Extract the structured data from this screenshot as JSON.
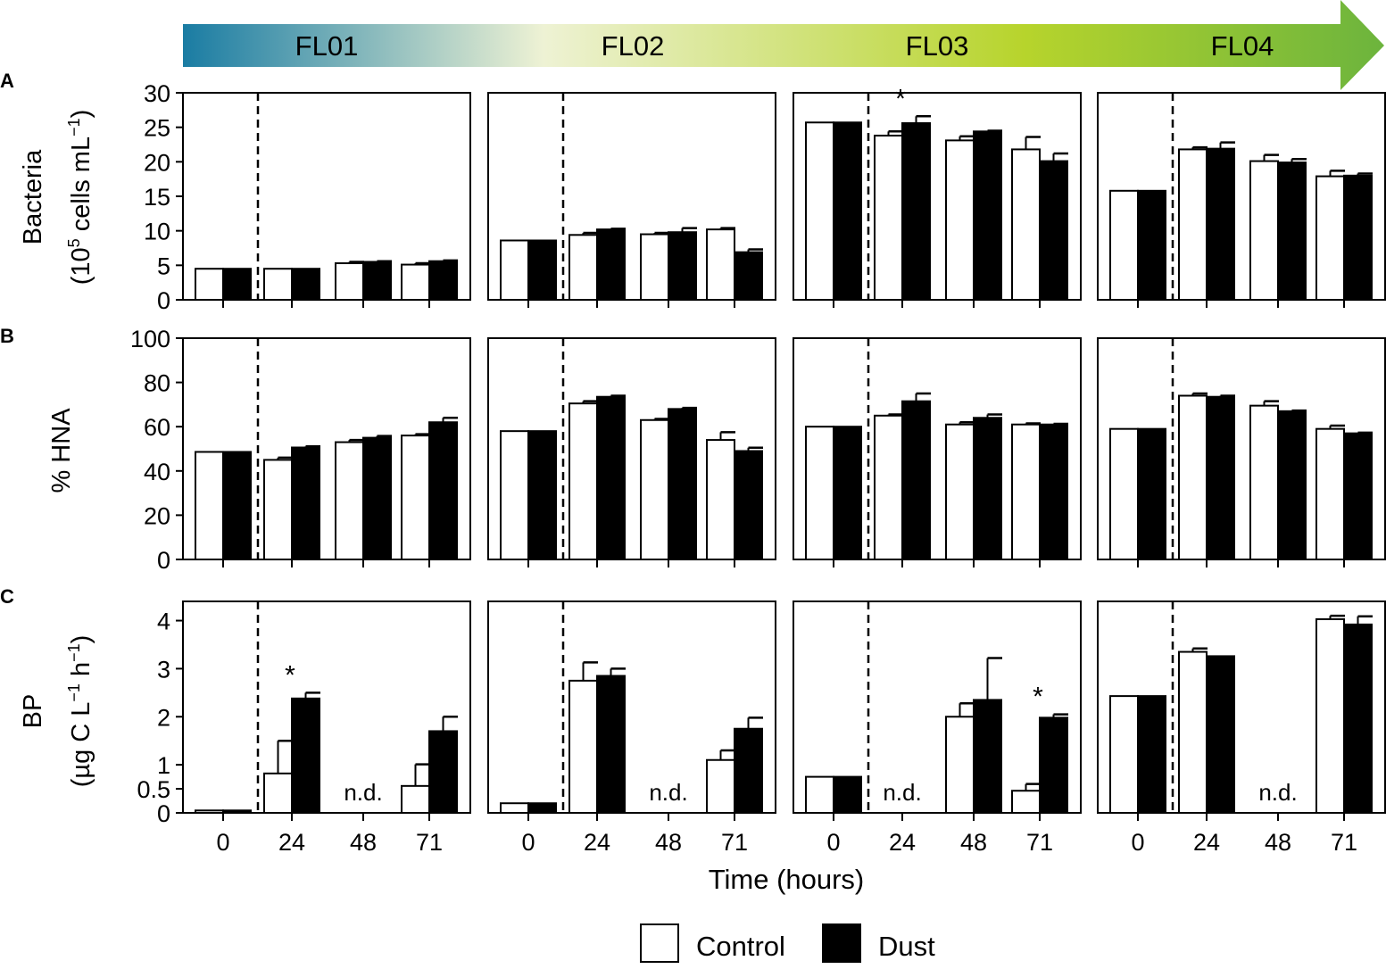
{
  "banner": {
    "labels": [
      "FL01",
      "FL02",
      "FL03",
      "FL04"
    ],
    "gradient_colors": [
      "#1a7ca3",
      "#eef2d4",
      "#b7d42c",
      "#6cb43d"
    ]
  },
  "panel_letters": [
    "A",
    "B",
    "C"
  ],
  "y_axis": {
    "A": {
      "line1": "Bacteria",
      "line2_pre": "(10",
      "line2_sup": "5",
      "line2_post": " cells mL",
      "line2_sup2": "−1",
      "line2_end": ")"
    },
    "B": {
      "line1": "% HNA"
    },
    "C": {
      "line1": "BP",
      "line2_pre": "(µg C L",
      "line2_sup": "−1",
      "line2_mid": " h",
      "line2_sup2": "−1",
      "line2_end": ")"
    }
  },
  "x_axis": {
    "label": "Time (hours)"
  },
  "legend": {
    "control": "Control",
    "dust": "Dust",
    "control_color": "#ffffff",
    "dust_color": "#000000"
  },
  "chart_data": {
    "type": "bar",
    "categories": [
      "0",
      "24",
      "48",
      "71"
    ],
    "series_names": [
      "Control",
      "Dust"
    ],
    "xlabel": "Time (hours)",
    "experiments": [
      "FL01",
      "FL02",
      "FL03",
      "FL04"
    ],
    "rows": [
      {
        "panel": "A",
        "ylabel": "Bacteria (10^5 cells mL^-1)",
        "ylim": [
          0,
          30
        ],
        "yticks": [
          0,
          5,
          10,
          15,
          20,
          25,
          30
        ],
        "ytick_labels": [
          "0",
          "5",
          "10",
          "15",
          "20",
          "25",
          "30"
        ],
        "experiments": [
          {
            "name": "FL01",
            "control": [
              4.5,
              4.5,
              5.3,
              5.1
            ],
            "dust": [
              4.5,
              4.5,
              5.5,
              5.6
            ],
            "control_err": [
              0,
              0,
              0.2,
              0.2
            ],
            "dust_err": [
              0,
              0,
              0.1,
              0.1
            ],
            "nd": [],
            "star_cats": []
          },
          {
            "name": "FL02",
            "control": [
              8.6,
              9.4,
              9.5,
              10.2
            ],
            "dust": [
              8.6,
              10.2,
              9.8,
              6.9
            ],
            "control_err": [
              0,
              0.3,
              0.2,
              0.2
            ],
            "dust_err": [
              0,
              0.1,
              0.6,
              0.4
            ],
            "nd": [],
            "star_cats": []
          },
          {
            "name": "FL03",
            "control": [
              25.7,
              23.8,
              23.1,
              21.8
            ],
            "dust": [
              25.7,
              25.6,
              24.4,
              20.1
            ],
            "control_err": [
              0,
              0.6,
              0.6,
              1.8
            ],
            "dust_err": [
              0,
              1.0,
              0.1,
              1.1
            ],
            "nd": [],
            "star_cats": [
              "24"
            ]
          },
          {
            "name": "FL04",
            "control": [
              15.8,
              21.8,
              20.1,
              17.9
            ],
            "dust": [
              15.8,
              21.9,
              19.9,
              18.0
            ],
            "control_err": [
              0,
              0.3,
              0.9,
              0.8
            ],
            "dust_err": [
              0,
              0.9,
              0.5,
              0.3
            ],
            "nd": [],
            "star_cats": []
          }
        ]
      },
      {
        "panel": "B",
        "ylabel": "% HNA",
        "ylim": [
          0,
          100
        ],
        "yticks": [
          0,
          20,
          40,
          60,
          80,
          100
        ],
        "ytick_labels": [
          "0",
          "20",
          "40",
          "60",
          "80",
          "100"
        ],
        "experiments": [
          {
            "name": "FL01",
            "control": [
              48.6,
              45.0,
              53.0,
              56.0
            ],
            "dust": [
              48.6,
              50.6,
              55.0,
              62.0
            ],
            "control_err": [
              0,
              1.0,
              1.0,
              0.6
            ],
            "dust_err": [
              0,
              0.5,
              0.8,
              2.0
            ],
            "nd": [],
            "star_cats": []
          },
          {
            "name": "FL02",
            "control": [
              58.0,
              70.5,
              63.0,
              54.0
            ],
            "dust": [
              58.0,
              73.5,
              68.0,
              49.0
            ],
            "control_err": [
              0,
              1.0,
              0.5,
              3.5
            ],
            "dust_err": [
              0,
              0.5,
              0.5,
              1.5
            ],
            "nd": [],
            "star_cats": []
          },
          {
            "name": "FL03",
            "control": [
              60.0,
              65.0,
              61.0,
              61.0
            ],
            "dust": [
              60.0,
              71.5,
              64.0,
              61.0
            ],
            "control_err": [
              0,
              0.5,
              1.0,
              0.5
            ],
            "dust_err": [
              0,
              3.5,
              1.5,
              0.3
            ],
            "nd": [],
            "star_cats": []
          },
          {
            "name": "FL04",
            "control": [
              59.0,
              74.0,
              69.5,
              59.0
            ],
            "dust": [
              59.0,
              73.5,
              67.0,
              57.0
            ],
            "control_err": [
              0,
              1.0,
              2.0,
              1.5
            ],
            "dust_err": [
              0,
              0.5,
              0.3,
              0.3
            ],
            "nd": [],
            "star_cats": []
          }
        ]
      },
      {
        "panel": "C",
        "ylabel": "BP (µg C L^-1 h^-1)",
        "ylim": [
          0,
          4.4
        ],
        "yticks": [
          0,
          0.5,
          1,
          2,
          3,
          4
        ],
        "ytick_labels": [
          "0",
          "0.5",
          "1",
          "2",
          "3",
          "4"
        ],
        "experiments": [
          {
            "name": "FL01",
            "control": [
              0.05,
              0.82,
              null,
              0.56
            ],
            "dust": [
              0.05,
              2.38,
              null,
              1.7
            ],
            "control_err": [
              0,
              0.68,
              0,
              0.45
            ],
            "dust_err": [
              0,
              0.12,
              0,
              0.3
            ],
            "nd": [
              "48"
            ],
            "star_cats": [
              "24"
            ]
          },
          {
            "name": "FL02",
            "control": [
              0.2,
              2.75,
              null,
              1.1
            ],
            "dust": [
              0.2,
              2.85,
              null,
              1.75
            ],
            "control_err": [
              0,
              0.38,
              0,
              0.2
            ],
            "dust_err": [
              0,
              0.15,
              0,
              0.23
            ],
            "nd": [
              "48"
            ],
            "star_cats": []
          },
          {
            "name": "FL03",
            "control": [
              0.75,
              null,
              2.0,
              0.46
            ],
            "dust": [
              0.75,
              null,
              2.35,
              1.98
            ],
            "control_err": [
              0,
              0,
              0.28,
              0.14
            ],
            "dust_err": [
              0,
              0,
              0.87,
              0.07
            ],
            "nd": [
              "24"
            ],
            "star_cats": [
              "71"
            ]
          },
          {
            "name": "FL04",
            "control": [
              2.43,
              3.35,
              null,
              4.03
            ],
            "dust": [
              2.43,
              3.26,
              null,
              3.92
            ],
            "control_err": [
              0,
              0.07,
              0,
              0.07
            ],
            "dust_err": [
              0,
              0,
              0,
              0.17
            ],
            "nd": [
              "48"
            ],
            "star_cats": []
          }
        ]
      }
    ],
    "annotations": {
      "nd_label": "n.d.",
      "star_label": "*"
    }
  }
}
